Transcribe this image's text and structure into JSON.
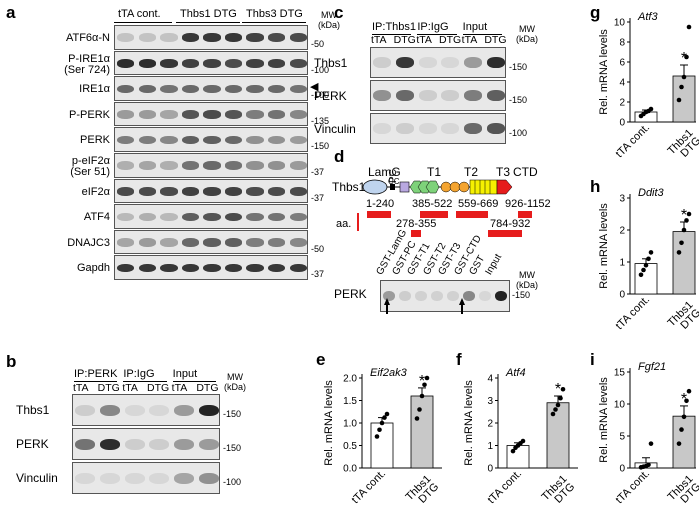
{
  "panels": {
    "a": {
      "label": "a",
      "groups": [
        "tTA cont.",
        "Thbs1 DTG",
        "Thbs3 DTG"
      ],
      "mw_header": [
        "MW",
        "(kDa)"
      ],
      "rows": [
        {
          "label": "ATF6α-N",
          "mw": "-50",
          "int": [
            0.15,
            0.15,
            0.15,
            0.85,
            0.85,
            0.85,
            0.8,
            0.75,
            0.75
          ]
        },
        {
          "label": "P-IRE1α",
          "label2": "(Ser 724)",
          "mw": "-100",
          "int": [
            0.9,
            0.9,
            0.85,
            0.8,
            0.8,
            0.75,
            0.8,
            0.8,
            0.75
          ]
        },
        {
          "label": "IRE1α",
          "mw": "-100",
          "int": [
            0.6,
            0.6,
            0.55,
            0.6,
            0.6,
            0.6,
            0.6,
            0.6,
            0.55
          ]
        },
        {
          "label": "P-PERK",
          "mw": "-135",
          "int": [
            0.35,
            0.35,
            0.3,
            0.7,
            0.75,
            0.7,
            0.5,
            0.55,
            0.45
          ]
        },
        {
          "label": "PERK",
          "mw": "-150",
          "int": [
            0.5,
            0.5,
            0.45,
            0.65,
            0.65,
            0.6,
            0.4,
            0.4,
            0.35
          ]
        },
        {
          "label": "p-eIF2α",
          "label2": "(Ser 51)",
          "mw": "-37",
          "int": [
            0.25,
            0.3,
            0.25,
            0.55,
            0.6,
            0.55,
            0.4,
            0.4,
            0.35
          ]
        },
        {
          "label": "eIF2α",
          "mw": "-37",
          "int": [
            0.75,
            0.75,
            0.75,
            0.8,
            0.8,
            0.8,
            0.75,
            0.75,
            0.75
          ]
        },
        {
          "label": "ATF4",
          "mw": "",
          "int": [
            0.2,
            0.25,
            0.2,
            0.65,
            0.7,
            0.75,
            0.55,
            0.55,
            0.5
          ]
        },
        {
          "label": "DNAJC3",
          "mw": "-50",
          "int": [
            0.3,
            0.35,
            0.3,
            0.6,
            0.65,
            0.65,
            0.5,
            0.5,
            0.45
          ]
        },
        {
          "label": "Gapdh",
          "mw": "-37",
          "int": [
            0.85,
            0.85,
            0.85,
            0.85,
            0.85,
            0.85,
            0.85,
            0.85,
            0.85
          ]
        }
      ]
    },
    "b": {
      "label": "b",
      "groups": [
        "IP:PERK",
        "IP:IgG",
        "Input"
      ],
      "lanes": [
        "tTA",
        "DTG",
        "tTA",
        "DTG",
        "tTA",
        "DTG"
      ],
      "mw_header": [
        "MW",
        "(kDa)"
      ],
      "rows": [
        {
          "label": "Thbs1",
          "mw": "-150",
          "int": [
            0.1,
            0.45,
            0.05,
            0.05,
            0.35,
            0.95
          ]
        },
        {
          "label": "PERK",
          "mw": "-150",
          "int": [
            0.55,
            0.9,
            0.1,
            0.1,
            0.35,
            0.35
          ]
        },
        {
          "label": "Vinculin",
          "mw": "-100",
          "int": [
            0.05,
            0.05,
            0.05,
            0.05,
            0.3,
            0.4
          ]
        }
      ]
    },
    "c": {
      "label": "c",
      "groups": [
        "IP:Thbs1",
        "IP:IgG",
        "Input"
      ],
      "lanes": [
        "tTA",
        "DTG",
        "tTA",
        "DTG",
        "tTA",
        "DTG"
      ],
      "mw_header": [
        "MW",
        "(kDa)"
      ],
      "rows": [
        {
          "label": "Thbs1",
          "mw": "-150",
          "int": [
            0.1,
            0.85,
            0.05,
            0.05,
            0.35,
            0.9
          ]
        },
        {
          "label": "PERK",
          "mw": "-150",
          "int": [
            0.4,
            0.6,
            0.1,
            0.1,
            0.5,
            0.65
          ]
        },
        {
          "label": "Vinculin",
          "mw": "-100",
          "int": [
            0.05,
            0.1,
            0.05,
            0.05,
            0.6,
            0.7
          ]
        }
      ]
    },
    "d": {
      "label": "d",
      "protein": "Thbs1",
      "domains": [
        "LamG",
        "CC",
        "PC",
        "T1",
        "T2",
        "T3",
        "CTD"
      ],
      "aa_label": "aa.",
      "ranges_top": [
        "1-240",
        "385-522",
        "559-669",
        "926-1152"
      ],
      "ranges_bottom": [
        "278-355",
        "784-932"
      ],
      "blot_row": "PERK",
      "lanes": [
        "GST-LamG",
        "GST-PC",
        "GST-T1",
        "GST-T2",
        "GST-T3",
        "GST-CTD",
        "GST",
        "Input"
      ],
      "mw_header": [
        "MW",
        "(kDa)"
      ],
      "mw": "-150"
    },
    "e": {
      "label": "e",
      "gene": "Eif2ak3",
      "ylabel": "Rel. mRNA levels",
      "yticks": [
        "0.0",
        "0.5",
        "1.0",
        "1.5",
        "2.0"
      ],
      "ymax": 2.0,
      "groups": [
        {
          "name": "tTA cont.",
          "value": 1.0,
          "err": 0.12,
          "points": [
            0.7,
            0.85,
            1.0,
            1.12,
            1.2
          ],
          "fill": "#ffffff"
        },
        {
          "name": "Thbs1 DTG",
          "value": 1.6,
          "err": 0.18,
          "points": [
            1.1,
            1.3,
            1.6,
            1.85,
            2.0
          ],
          "fill": "#c8c8c8"
        }
      ],
      "star": "*"
    },
    "f": {
      "label": "f",
      "gene": "Atf4",
      "ylabel": "Rel. mRNA levels",
      "yticks": [
        "0",
        "1",
        "2",
        "3",
        "4"
      ],
      "ymax": 4,
      "groups": [
        {
          "name": "tTA cont.",
          "value": 1.0,
          "err": 0.12,
          "points": [
            0.75,
            0.9,
            1.0,
            1.1,
            1.2
          ],
          "fill": "#ffffff"
        },
        {
          "name": "Thbs1 DTG",
          "value": 2.9,
          "err": 0.3,
          "points": [
            2.4,
            2.6,
            2.8,
            3.1,
            3.5
          ],
          "fill": "#c8c8c8"
        }
      ],
      "star": "*"
    },
    "g": {
      "label": "g",
      "gene": "Atf3",
      "ylabel": "Rel. mRNA levels",
      "yticks": [
        "0",
        "2",
        "4",
        "6",
        "8",
        "10"
      ],
      "ymax": 10,
      "groups": [
        {
          "name": "tTA cont.",
          "value": 1.0,
          "err": 0.2,
          "points": [
            0.6,
            0.8,
            1.0,
            1.1,
            1.3
          ],
          "fill": "#ffffff"
        },
        {
          "name": "Thbs1 DTG",
          "value": 4.6,
          "err": 1.1,
          "points": [
            2.2,
            3.5,
            4.5,
            6.5,
            9.5
          ],
          "fill": "#c8c8c8"
        }
      ],
      "star": "*"
    },
    "h": {
      "label": "h",
      "gene": "Ddit3",
      "ylabel": "Rel. mRNA levels",
      "yticks": [
        "0",
        "1",
        "2",
        "3"
      ],
      "ymax": 3,
      "groups": [
        {
          "name": "tTA cont.",
          "value": 0.95,
          "err": 0.15,
          "points": [
            0.6,
            0.75,
            0.9,
            1.1,
            1.3
          ],
          "fill": "#ffffff"
        },
        {
          "name": "Thbs1 DTG",
          "value": 1.95,
          "err": 0.3,
          "points": [
            1.3,
            1.6,
            2.0,
            2.3,
            2.5
          ],
          "fill": "#c8c8c8"
        }
      ],
      "star": "*"
    },
    "i": {
      "label": "i",
      "gene": "Fgf21",
      "ylabel": "Rel. mRNA levels",
      "yticks": [
        "0",
        "5",
        "10",
        "15"
      ],
      "ymax": 15,
      "groups": [
        {
          "name": "tTA cont.",
          "value": 0.8,
          "err": 0.8,
          "points": [
            0.1,
            0.2,
            0.3,
            0.5,
            3.8
          ],
          "fill": "#ffffff"
        },
        {
          "name": "Thbs1 DTG",
          "value": 8.1,
          "err": 1.6,
          "points": [
            3.8,
            6.0,
            8.0,
            10.5,
            12.0
          ],
          "fill": "#c8c8c8"
        }
      ],
      "star": "*"
    }
  },
  "arrowhead": "◀"
}
